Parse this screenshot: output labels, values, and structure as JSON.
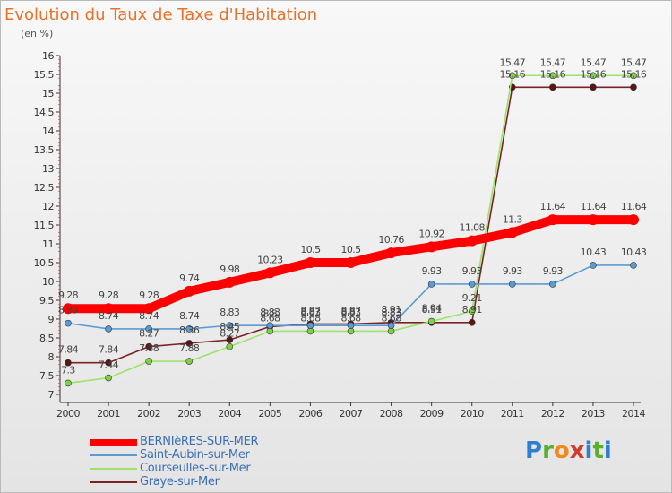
{
  "title": "Evolution du Taux de Taxe d'Habitation",
  "unit": "(en %)",
  "brand": {
    "letters": [
      "P",
      "r",
      "o",
      "x",
      "i",
      "t",
      "i"
    ],
    "colors": [
      "#2f7fd0",
      "#5bae2e",
      "#f08a1e",
      "#d13b2b",
      "#2f7fd0",
      "#5bae2e",
      "#2f7fd0"
    ]
  },
  "chart_data": {
    "type": "line",
    "x": [
      "2000",
      "2001",
      "2002",
      "2003",
      "2004",
      "2005",
      "2006",
      "2007",
      "2008",
      "2009",
      "2010",
      "2011",
      "2012",
      "2013",
      "2014"
    ],
    "ylim": [
      7,
      16
    ],
    "yticks": [
      "7",
      "7.5",
      "8",
      "8.5",
      "9",
      "9.5",
      "10",
      "10.5",
      "11",
      "11.5",
      "12",
      "12.5",
      "13",
      "13.5",
      "14",
      "14.5",
      "15",
      "15.5",
      "16"
    ],
    "grid": false,
    "legend_position": "bottom-left",
    "series": [
      {
        "name": "BERNIèRES-SUR-MER",
        "color": "#ff0000",
        "marker": "#ff0000",
        "values": [
          9.28,
          9.28,
          9.28,
          9.74,
          9.98,
          10.23,
          10.5,
          10.5,
          10.76,
          10.92,
          11.08,
          11.3,
          11.64,
          11.64,
          11.64
        ],
        "labels": [
          "9.28",
          "9.28",
          "9.28",
          "9.74",
          "9.98",
          "10.23",
          "10.5",
          "10.5",
          "10.76",
          "10.92",
          "11.08",
          "11.3",
          "11.64",
          "11.64",
          "11.64"
        ]
      },
      {
        "name": "Saint-Aubin-sur-Mer",
        "color": "#5b9bd5",
        "marker": "#5b9bd5",
        "values": [
          8.89,
          8.74,
          8.74,
          8.74,
          8.83,
          8.83,
          8.83,
          8.83,
          8.83,
          9.93,
          9.93,
          9.93,
          9.93,
          10.43,
          10.43
        ],
        "labels": [
          "8.89",
          "8.74",
          "8.74",
          "8.74",
          "8.83",
          "8.83",
          "8.83",
          "8.83",
          "8.83",
          "9.93",
          "9.93",
          "9.93",
          "9.93",
          "10.43",
          "10.43"
        ]
      },
      {
        "name": "Courseulles-sur-Mer",
        "color": "#9be36b",
        "marker": "#7ed04a",
        "values": [
          7.3,
          7.44,
          7.88,
          7.88,
          8.27,
          8.68,
          8.68,
          8.68,
          8.68,
          8.94,
          9.21,
          15.47,
          15.47,
          15.47,
          15.47
        ],
        "labels": [
          "7.3",
          "7.44",
          "7.88",
          "7.88",
          "8.27",
          "8.68",
          "8.68",
          "8.68",
          "8.68",
          "8.94",
          "9.21",
          "15.47",
          "15.47",
          "15.47",
          "15.47"
        ]
      },
      {
        "name": "Graye-sur-Mer",
        "color": "#7a2323",
        "marker": "#5a1515",
        "values": [
          7.84,
          7.84,
          8.27,
          8.36,
          8.45,
          8.8,
          8.87,
          8.87,
          8.91,
          8.91,
          8.91,
          15.16,
          15.16,
          15.16,
          15.16
        ],
        "labels": [
          "7.84",
          "7.84",
          "8.27",
          "8.36",
          "8.45",
          "8.8",
          "8.87",
          "8.87",
          "8.91",
          "8.91",
          "8.91",
          "15.16",
          "15.16",
          "15.16",
          "15.16"
        ]
      }
    ]
  }
}
